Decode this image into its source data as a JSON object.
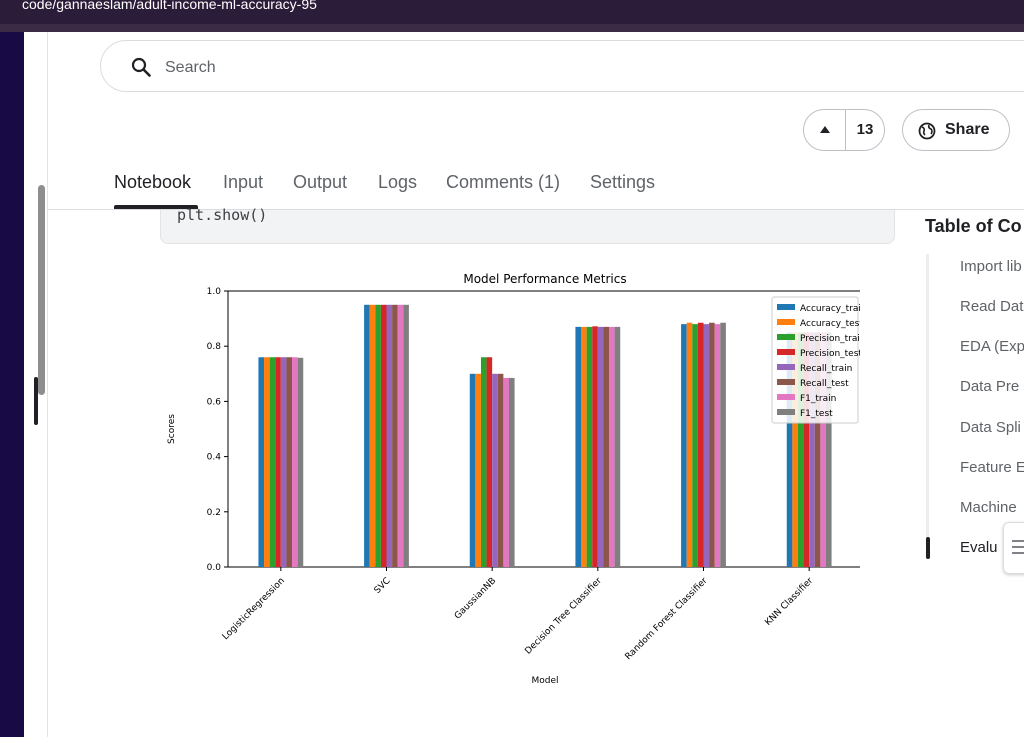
{
  "browser": {
    "url": "code/gannaeslam/adult-income-ml-accuracy-95"
  },
  "search": {
    "placeholder": "Search"
  },
  "votes": {
    "count": "13"
  },
  "share": {
    "label": "Share"
  },
  "tabs": [
    {
      "label": "Notebook",
      "active": true
    },
    {
      "label": "Input"
    },
    {
      "label": "Output"
    },
    {
      "label": "Logs"
    },
    {
      "label": "Comments (1)"
    },
    {
      "label": "Settings"
    }
  ],
  "code": {
    "line": "plt.show()"
  },
  "toc": {
    "title": "Table of Co",
    "items": [
      "Import lib",
      "Read Dat",
      "EDA (Exp",
      "Data Pre",
      "Data Spli",
      "Feature E",
      "Machine",
      "Evalu"
    ]
  },
  "chart_data": {
    "type": "bar",
    "title": "Model Performance Metrics",
    "xlabel": "Model",
    "ylabel": "Scores",
    "ylim": [
      0,
      1.0
    ],
    "yticks": [
      "0.0",
      "0.2",
      "0.4",
      "0.6",
      "0.8",
      "1.0"
    ],
    "legend_position": "top-right",
    "categories": [
      "LogisticRegression",
      "SVC",
      "GaussianNB",
      "Decision Tree Classifier",
      "Random Forest Classifier",
      "KNN Classifier"
    ],
    "series": [
      {
        "name": "Accuracy_train",
        "color": "#1f77b4",
        "values": [
          0.76,
          0.95,
          0.7,
          0.87,
          0.88,
          0.85
        ]
      },
      {
        "name": "Accuracy_test",
        "color": "#ff7f0e",
        "values": [
          0.76,
          0.95,
          0.7,
          0.87,
          0.885,
          0.85
        ]
      },
      {
        "name": "Precision_train",
        "color": "#2ca02c",
        "values": [
          0.76,
          0.95,
          0.76,
          0.87,
          0.88,
          0.85
        ]
      },
      {
        "name": "Precision_test",
        "color": "#d62728",
        "values": [
          0.76,
          0.95,
          0.76,
          0.872,
          0.885,
          0.85
        ]
      },
      {
        "name": "Recall_train",
        "color": "#9467bd",
        "values": [
          0.76,
          0.95,
          0.7,
          0.87,
          0.88,
          0.85
        ]
      },
      {
        "name": "Recall_test",
        "color": "#8c564b",
        "values": [
          0.76,
          0.95,
          0.7,
          0.87,
          0.885,
          0.85
        ]
      },
      {
        "name": "F1_train",
        "color": "#e377c2",
        "values": [
          0.76,
          0.95,
          0.685,
          0.87,
          0.88,
          0.85
        ]
      },
      {
        "name": "F1_test",
        "color": "#7f7f7f",
        "values": [
          0.758,
          0.95,
          0.685,
          0.87,
          0.885,
          0.85
        ]
      }
    ]
  }
}
